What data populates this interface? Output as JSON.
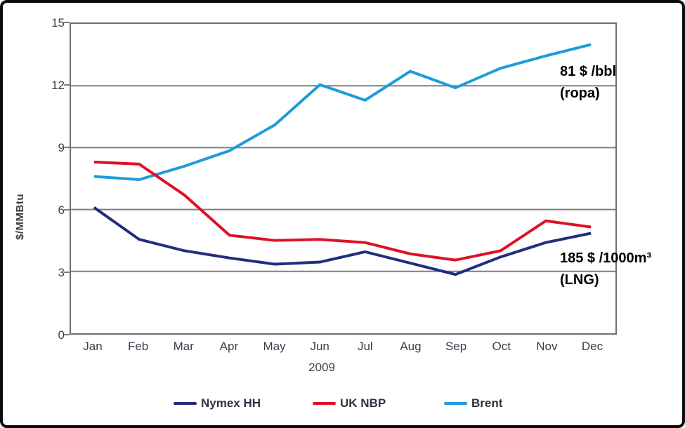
{
  "chart_data": {
    "type": "line",
    "title": "",
    "ylabel": "$/MMBtu",
    "year_label": "2009",
    "categories": [
      "Jan",
      "Feb",
      "Mar",
      "Apr",
      "May",
      "Jun",
      "Jul",
      "Aug",
      "Sep",
      "Oct",
      "Nov",
      "Dec"
    ],
    "ylim": [
      0,
      15
    ],
    "yticks": [
      0,
      3,
      6,
      9,
      12,
      15
    ],
    "grid": "horizontal",
    "legend_position": "bottom",
    "gridline_color": "#7f7f7f",
    "series": [
      {
        "name": "Nymex HH",
        "color": "#232D7E",
        "values": [
          6.1,
          4.55,
          4.0,
          3.65,
          3.35,
          3.45,
          3.95,
          3.4,
          2.85,
          3.7,
          4.4,
          4.85
        ]
      },
      {
        "name": "UK NBP",
        "color": "#DE1126",
        "values": [
          8.3,
          8.2,
          6.7,
          4.75,
          4.5,
          4.55,
          4.4,
          3.85,
          3.55,
          4.0,
          5.45,
          5.15
        ]
      },
      {
        "name": "Brent",
        "color": "#1F9CD8",
        "values": [
          7.6,
          7.45,
          8.1,
          8.85,
          10.1,
          12.05,
          11.3,
          12.7,
          11.9,
          12.85,
          13.45,
          14.0
        ]
      }
    ],
    "annotations": [
      {
        "id": "brent-price",
        "lines": [
          "81 $ /bbl",
          "(ropa)"
        ]
      },
      {
        "id": "lng-price",
        "lines": [
          "185 $ /1000m³",
          "(LNG)"
        ]
      }
    ]
  }
}
